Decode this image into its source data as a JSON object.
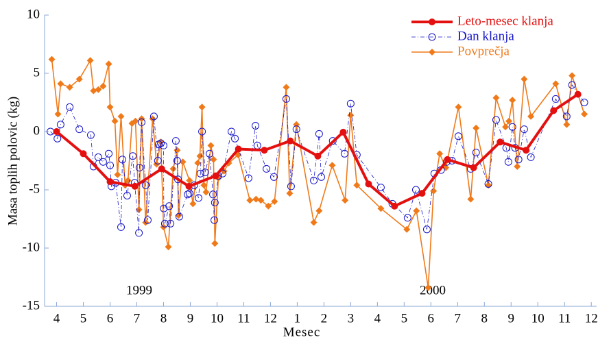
{
  "chart_data": {
    "type": "line",
    "xlabel": "Mesec",
    "ylabel": "Masa toplih polovic (kg)",
    "annotations": [
      "1999",
      "2000"
    ],
    "xlim": [
      -0.45,
      20.2
    ],
    "ylim": [
      -15,
      10
    ],
    "yticks": [
      10,
      5,
      0,
      -5,
      -10,
      -15
    ],
    "xticks": [
      {
        "value": 0,
        "label": "4"
      },
      {
        "value": 1,
        "label": "5"
      },
      {
        "value": 2,
        "label": "6"
      },
      {
        "value": 3,
        "label": "7"
      },
      {
        "value": 4,
        "label": "8"
      },
      {
        "value": 5,
        "label": "9"
      },
      {
        "value": 6,
        "label": "10"
      },
      {
        "value": 7,
        "label": "11"
      },
      {
        "value": 8,
        "label": "12"
      },
      {
        "value": 9,
        "label": "1"
      },
      {
        "value": 10,
        "label": "2"
      },
      {
        "value": 11,
        "label": "3"
      },
      {
        "value": 12,
        "label": "4"
      },
      {
        "value": 13,
        "label": "5"
      },
      {
        "value": 14,
        "label": "6"
      },
      {
        "value": 15,
        "label": "7"
      },
      {
        "value": 16,
        "label": "8"
      },
      {
        "value": 17,
        "label": "9"
      },
      {
        "value": 18,
        "label": "10"
      },
      {
        "value": 19,
        "label": "11"
      },
      {
        "value": 20,
        "label": "12"
      }
    ],
    "legend": "upper right",
    "series": [
      {
        "name": "Leto-mesec klanja",
        "color": "#e41010",
        "marker": "circle",
        "style": "thick",
        "x": [
          0,
          1,
          2,
          2.93,
          3.93,
          4.95,
          5.95,
          6.8,
          7.77,
          8.74,
          9.77,
          10.72,
          11.67,
          12.64,
          13.67,
          14.62,
          15.6,
          16.59,
          17.56,
          18.59,
          19.5
        ],
        "values": [
          0,
          -1.9,
          -4.3,
          -4.7,
          -3.2,
          -4.7,
          -3.8,
          -1.5,
          -1.6,
          -0.8,
          -2.1,
          -0.05,
          -4.5,
          -6.4,
          -5.3,
          -2.4,
          -3.1,
          -0.9,
          -1.6,
          1.8,
          3.2
        ]
      },
      {
        "name": "Dan klanja",
        "color": "#1515c8",
        "marker": "open-circle",
        "style": "dashdot",
        "x": [
          -0.23,
          0.03,
          0.15,
          0.49,
          0.85,
          1.28,
          1.38,
          1.56,
          1.74,
          1.95,
          2.0,
          2.05,
          2.21,
          2.41,
          2.46,
          2.64,
          2.85,
          2.92,
          3.08,
          3.1,
          3.18,
          3.33,
          3.41,
          3.64,
          3.79,
          3.82,
          3.9,
          4.0,
          4.01,
          4.05,
          4.21,
          4.26,
          4.46,
          4.51,
          4.54,
          4.59,
          4.9,
          4.97,
          5.15,
          5.31,
          5.38,
          5.44,
          5.56,
          5.72,
          5.85,
          5.9,
          5.92,
          6.05,
          6.21,
          6.54,
          6.67,
          7.18,
          7.44,
          7.51,
          7.85,
          8.13,
          8.59,
          8.77,
          8.97,
          9.62,
          9.82,
          9.9,
          10.33,
          10.77,
          11.0,
          11.23,
          12.13,
          12.56,
          13.13,
          13.44,
          13.85,
          14.13,
          14.38,
          14.59,
          14.79,
          15.03,
          15.49,
          15.69,
          16.15,
          16.44,
          16.82,
          16.9,
          17.05,
          17.15,
          17.28,
          17.49,
          17.74,
          18.67,
          19.08,
          19.28,
          19.74
        ],
        "values": [
          0.0,
          -0.6,
          0.6,
          2.1,
          0.2,
          -0.3,
          -3.0,
          -2.2,
          -2.6,
          -1.9,
          -2.9,
          -4.7,
          -4.4,
          -8.2,
          -2.4,
          -5.5,
          -2.1,
          -4.4,
          -8.7,
          -3.1,
          0.8,
          -4.6,
          -7.6,
          1.3,
          -2.5,
          -1.1,
          -1.0,
          -1.2,
          -6.6,
          -7.9,
          -6.4,
          -7.9,
          -0.8,
          -2.5,
          -4.1,
          -7.3,
          -5.4,
          -5.3,
          -4.6,
          -5.7,
          -3.6,
          0.0,
          -3.5,
          -1.9,
          -5.4,
          -7.6,
          -6.1,
          -3.8,
          -3.6,
          0.0,
          -0.6,
          -4.0,
          0.5,
          -1.2,
          -3.2,
          -3.9,
          2.8,
          -4.7,
          0.2,
          -4.2,
          -0.2,
          -3.9,
          -0.8,
          -1.9,
          2.4,
          -2.0,
          -4.8,
          -6.2,
          -7.4,
          -5.0,
          -8.4,
          -3.6,
          -3.3,
          -2.6,
          -2.5,
          -0.4,
          -3.2,
          -1.8,
          -4.5,
          1.0,
          -1.4,
          -2.6,
          0.4,
          -1.4,
          -2.4,
          0.2,
          -2.2,
          2.8,
          1.3,
          4.0,
          2.5
        ]
      },
      {
        "name": "Povprečja",
        "color": "#f07a1a",
        "marker": "diamond",
        "style": "solid",
        "x": [
          -0.18,
          0.05,
          0.15,
          0.49,
          0.85,
          1.26,
          1.38,
          1.56,
          1.74,
          1.95,
          2.0,
          2.18,
          2.28,
          2.41,
          2.56,
          2.67,
          2.82,
          2.95,
          3.08,
          3.18,
          3.33,
          3.59,
          3.74,
          3.9,
          4.0,
          4.18,
          4.36,
          4.51,
          4.56,
          4.72,
          4.97,
          5.1,
          5.28,
          5.36,
          5.44,
          5.51,
          5.59,
          5.77,
          5.87,
          5.92,
          6.05,
          6.26,
          6.44,
          6.79,
          7.23,
          7.46,
          7.64,
          7.92,
          8.15,
          8.59,
          8.72,
          8.97,
          9.62,
          9.82,
          10.31,
          10.79,
          11.0,
          11.23,
          12.13,
          13.1,
          13.46,
          13.9,
          14.1,
          14.33,
          14.56,
          15.03,
          15.49,
          15.69,
          16.15,
          16.44,
          16.79,
          16.92,
          17.05,
          17.23,
          17.49,
          17.74,
          18.67,
          19.08,
          19.28,
          19.74
        ],
        "values": [
          6.2,
          1.5,
          4.1,
          3.8,
          4.5,
          6.1,
          3.5,
          3.6,
          3.9,
          5.8,
          2.1,
          0.9,
          -3.7,
          1.3,
          -4.6,
          -4.2,
          0.7,
          0.9,
          -6.7,
          1.1,
          -7.8,
          1.1,
          -2.8,
          -0.9,
          -8.2,
          -9.9,
          -3.2,
          -1.6,
          -7.2,
          -2.6,
          -4.2,
          -6.2,
          -2.7,
          -2.1,
          2.1,
          -4.6,
          -5.2,
          -1.2,
          -2.4,
          -9.6,
          -4.0,
          -3.4,
          -2.7,
          -2.0,
          -5.9,
          -5.8,
          -5.9,
          -6.4,
          -6.0,
          3.8,
          -5.3,
          0.6,
          -7.8,
          -6.8,
          -2.9,
          -5.9,
          1.4,
          -4.6,
          -6.6,
          -8.4,
          -6.8,
          -13.4,
          -5.1,
          -1.9,
          -3.1,
          2.1,
          -5.8,
          0.3,
          -4.6,
          2.9,
          0.4,
          0.9,
          2.7,
          -3.0,
          4.5,
          1.3,
          4.1,
          0.6,
          4.8,
          1.5
        ]
      }
    ]
  }
}
